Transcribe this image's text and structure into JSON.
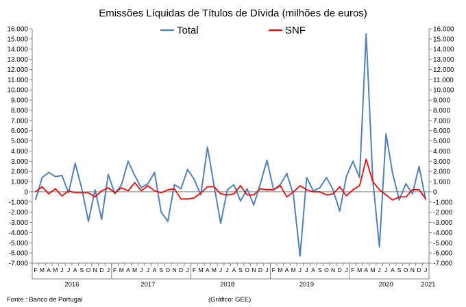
{
  "chart_data": {
    "type": "line",
    "title": "Emissões Líquidas de Títulos de Dívida (milhões de euros)",
    "yticks": [
      "16.000",
      "15.000",
      "14.000",
      "13.000",
      "12.000",
      "11.000",
      "10.000",
      "9.000",
      "8.000",
      "7.000",
      "6.000",
      "5.000",
      "4.000",
      "3.000",
      "2.000",
      "1.000",
      "0",
      "-1.000",
      "-2.000",
      "-3.000",
      "-4.000",
      "-5.000",
      "-6.000",
      "-7.000"
    ],
    "ylim": [
      -7000,
      16000
    ],
    "secondary_axis": true,
    "x_month_labels": [
      "F",
      "M",
      "A",
      "M",
      "J",
      "J",
      "A",
      "S",
      "O",
      "N",
      "D",
      "J",
      "F",
      "M",
      "A",
      "M",
      "J",
      "J",
      "A",
      "S",
      "O",
      "N",
      "D",
      "J",
      "F",
      "M",
      "A",
      "M",
      "J",
      "J",
      "A",
      "S",
      "O",
      "N",
      "D",
      "J",
      "F",
      "M",
      "A",
      "M",
      "J",
      "J",
      "A",
      "S",
      "O",
      "N",
      "D",
      "J",
      "F",
      "M",
      "A",
      "M",
      "J",
      "J",
      "A",
      "S",
      "O",
      "N",
      "D",
      "J"
    ],
    "year_labels": [
      "2016",
      "2017",
      "2018",
      "2019",
      "2020",
      "2021"
    ],
    "year_label_month_index": [
      5.5,
      17,
      29,
      41,
      53,
      59.5
    ],
    "year_separator_month_index": [
      11,
      23,
      35,
      47,
      59
    ],
    "legend_position": "top",
    "series": [
      {
        "name": "Total",
        "color": "#4f81bd",
        "values": [
          -800,
          1400,
          1900,
          1500,
          1600,
          -100,
          2800,
          300,
          -2900,
          200,
          -2700,
          1700,
          -200,
          700,
          3000,
          1600,
          400,
          800,
          1900,
          -2000,
          -2900,
          700,
          300,
          2200,
          1200,
          -300,
          4400,
          600,
          -3100,
          200,
          700,
          -900,
          300,
          -1300,
          800,
          3100,
          200,
          700,
          1800,
          -300,
          -6300,
          1400,
          100,
          400,
          1400,
          200,
          -1900,
          1500,
          3000,
          1400,
          15500,
          1200,
          -5400,
          5700,
          1800,
          -800,
          800,
          -200,
          2500,
          -800
        ]
      },
      {
        "name": "SNF",
        "color": "#ff0000",
        "values": [
          0,
          500,
          -200,
          300,
          -400,
          100,
          -100,
          -100,
          -100,
          -500,
          100,
          400,
          -100,
          400,
          100,
          900,
          100,
          600,
          100,
          -100,
          200,
          300,
          -700,
          -700,
          -600,
          -100,
          500,
          500,
          -200,
          -300,
          -200,
          600,
          -300,
          -300,
          300,
          200,
          200,
          600,
          -500,
          0,
          600,
          200,
          0,
          0,
          -300,
          -200,
          500,
          -400,
          200,
          600,
          3200,
          1000,
          200,
          -300,
          -800,
          -500,
          -500,
          200,
          200,
          -700
        ]
      }
    ]
  },
  "source_note": "Fonte : Banco de Portugal",
  "credit_note": "(Gráfico: GEE)"
}
